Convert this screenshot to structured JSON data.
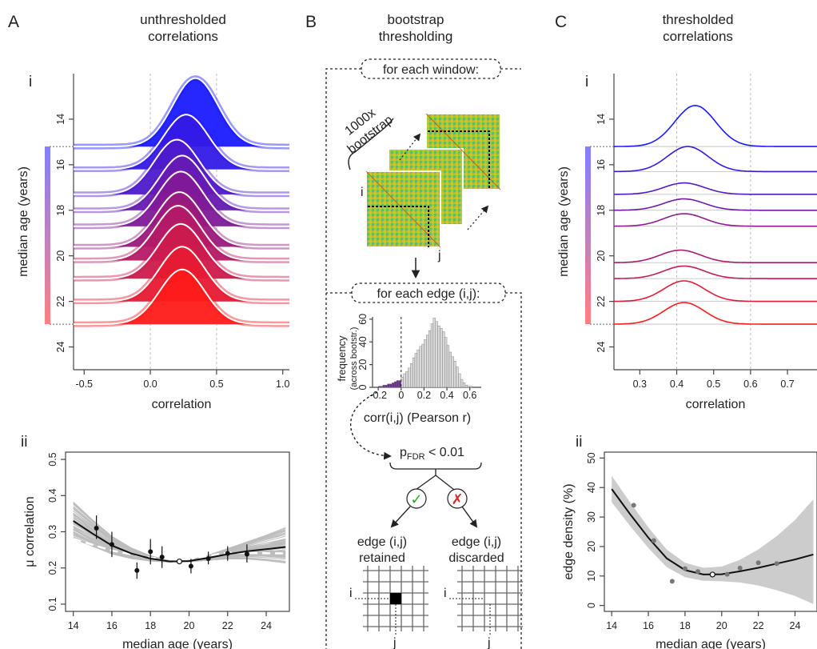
{
  "panels": {
    "A": {
      "letter": "A",
      "title": [
        "unthresholded",
        "correlations"
      ],
      "sub_i": "i",
      "sub_ii": "ii"
    },
    "B": {
      "letter": "B",
      "title": [
        "bootstrap",
        "thresholding"
      ],
      "window_box": "for each window:",
      "bootstrap_text": [
        "1000x",
        "bootstrap"
      ],
      "idx_i": "i",
      "idx_j": "j",
      "edge_box": "for each edge (i,j):",
      "hist_ylabel": [
        "frequency",
        "(across bootstr.)"
      ],
      "hist_xlabel": "corr(i,j) (Pearson r)",
      "pfdr_p": "p",
      "pfdr_sub": "FDR",
      "pfdr_rest": " < 0.01",
      "check_symbol": "✓",
      "cross_symbol": "✗",
      "retained": [
        "edge (i,j)",
        "retained"
      ],
      "discarded": [
        "edge (i,j)",
        "discarded"
      ]
    },
    "C": {
      "letter": "C",
      "title": [
        "thresholded",
        "correlations"
      ],
      "sub_i": "i",
      "sub_ii": "ii"
    }
  },
  "colors": {
    "young": "#1a1aff",
    "old": "#ff1a1a",
    "ribbon": "#cccccc",
    "spaghetti": "#bdbdbd"
  },
  "chart_data": [
    {
      "id": "A-i",
      "type": "area",
      "xlabel": "correlation",
      "ylabel": "median age (years)",
      "xticks": [
        -0.5,
        0.0,
        0.5,
        1.0
      ],
      "xtick_labels": [
        "-0.5",
        "0.0",
        "0.5",
        "1.0"
      ],
      "xlim": [
        -0.58,
        1.05
      ],
      "yticks": [
        14,
        16,
        18,
        20,
        22,
        24
      ],
      "ylim": [
        12,
        25
      ],
      "x_gridlines": [
        0.0,
        0.5
      ],
      "series": [
        {
          "age": 15.2,
          "mean": 0.34,
          "sd": 0.17,
          "height": 3.0
        },
        {
          "age": 16.2,
          "mean": 0.27,
          "sd": 0.17,
          "height": 2.4
        },
        {
          "age": 17.3,
          "mean": 0.2,
          "sd": 0.17,
          "height": 2.4
        },
        {
          "age": 18.0,
          "mean": 0.24,
          "sd": 0.17,
          "height": 2.4
        },
        {
          "age": 18.7,
          "mean": 0.23,
          "sd": 0.17,
          "height": 2.4
        },
        {
          "age": 19.6,
          "mean": 0.22,
          "sd": 0.17,
          "height": 2.4
        },
        {
          "age": 20.2,
          "mean": 0.21,
          "sd": 0.17,
          "height": 2.4
        },
        {
          "age": 21.0,
          "mean": 0.23,
          "sd": 0.17,
          "height": 2.4
        },
        {
          "age": 22.0,
          "mean": 0.24,
          "sd": 0.17,
          "height": 2.4
        },
        {
          "age": 23.0,
          "mean": 0.24,
          "sd": 0.17,
          "height": 2.4
        }
      ]
    },
    {
      "id": "A-ii",
      "type": "scatter",
      "xlabel": "median age (years)",
      "ylabel": "μ correlation",
      "xticks": [
        14,
        16,
        18,
        20,
        22,
        24
      ],
      "xlim": [
        13.6,
        25.2
      ],
      "yticks": [
        0.1,
        0.2,
        0.3,
        0.4,
        0.5
      ],
      "ylim": [
        0.08,
        0.52
      ],
      "points": [
        {
          "x": 15.2,
          "y": 0.31,
          "lo": 0.28,
          "hi": 0.345
        },
        {
          "x": 16.0,
          "y": 0.265,
          "lo": 0.23,
          "hi": 0.3
        },
        {
          "x": 17.3,
          "y": 0.193,
          "lo": 0.17,
          "hi": 0.215
        },
        {
          "x": 18.0,
          "y": 0.245,
          "lo": 0.21,
          "hi": 0.28
        },
        {
          "x": 18.6,
          "y": 0.23,
          "lo": 0.2,
          "hi": 0.26
        },
        {
          "x": 19.5,
          "y": 0.218,
          "open": true
        },
        {
          "x": 20.1,
          "y": 0.205,
          "lo": 0.185,
          "hi": 0.225
        },
        {
          "x": 21.0,
          "y": 0.226,
          "lo": 0.21,
          "hi": 0.245
        },
        {
          "x": 22.0,
          "y": 0.24,
          "lo": 0.22,
          "hi": 0.26
        },
        {
          "x": 23.0,
          "y": 0.238,
          "lo": 0.215,
          "hi": 0.265
        }
      ],
      "fit": [
        [
          14,
          0.33
        ],
        [
          15,
          0.295
        ],
        [
          16,
          0.262
        ],
        [
          17,
          0.24
        ],
        [
          18,
          0.226
        ],
        [
          19,
          0.218
        ],
        [
          20,
          0.219
        ],
        [
          21,
          0.228
        ],
        [
          22,
          0.238
        ],
        [
          23,
          0.246
        ],
        [
          24,
          0.252
        ],
        [
          25,
          0.258
        ]
      ],
      "dashed_fit": [
        [
          14,
          0.28
        ],
        [
          16,
          0.248
        ],
        [
          18,
          0.228
        ],
        [
          20,
          0.225
        ],
        [
          22,
          0.242
        ],
        [
          25,
          0.24
        ]
      ]
    },
    {
      "id": "B-hist",
      "type": "bar",
      "xticks": [
        -0.2,
        0,
        0.2,
        0.4,
        0.6
      ],
      "xtick_labels": [
        "-0.2",
        "0",
        "0.2",
        "0.4",
        "0.6"
      ],
      "xlim": [
        -0.25,
        0.7
      ],
      "yticks": [
        0,
        20,
        40,
        60
      ],
      "ylim": [
        0,
        62
      ],
      "bin_width": 0.02,
      "bins_start": -0.2,
      "counts": [
        1,
        1,
        2,
        2,
        3,
        3,
        4,
        5,
        6,
        6,
        9,
        12,
        14,
        17,
        21,
        26,
        30,
        33,
        36,
        38,
        42,
        46,
        50,
        56,
        61,
        58,
        54,
        52,
        49,
        44,
        37,
        31,
        27,
        23,
        18,
        12,
        7,
        4,
        2,
        1,
        1,
        0,
        0,
        0,
        0
      ],
      "negative_color": "#6a2c8e",
      "positive_color": "#d9d9d9"
    },
    {
      "id": "C-i",
      "type": "area",
      "xlabel": "correlation",
      "ylabel": "median age (years)",
      "xticks": [
        0.3,
        0.4,
        0.5,
        0.6,
        0.7
      ],
      "xlim": [
        0.23,
        0.78
      ],
      "yticks": [
        14,
        16,
        18,
        20,
        22,
        24
      ],
      "ylim": [
        12,
        25
      ],
      "x_gridlines": [
        0.4,
        0.6
      ],
      "series": [
        {
          "age": 15.2,
          "mean": 0.45,
          "sd": 0.055,
          "height": 1.8
        },
        {
          "age": 16.3,
          "mean": 0.43,
          "sd": 0.055,
          "height": 1.1
        },
        {
          "age": 17.3,
          "mean": 0.42,
          "sd": 0.055,
          "height": 0.5
        },
        {
          "age": 18.0,
          "mean": 0.42,
          "sd": 0.055,
          "height": 0.5
        },
        {
          "age": 18.7,
          "mean": 0.42,
          "sd": 0.055,
          "height": 0.55
        },
        {
          "age": 20.3,
          "mean": 0.41,
          "sd": 0.055,
          "height": 0.55
        },
        {
          "age": 21.0,
          "mean": 0.42,
          "sd": 0.055,
          "height": 0.55
        },
        {
          "age": 22.0,
          "mean": 0.42,
          "sd": 0.055,
          "height": 0.9
        },
        {
          "age": 23.0,
          "mean": 0.42,
          "sd": 0.055,
          "height": 0.95
        }
      ]
    },
    {
      "id": "C-ii",
      "type": "scatter",
      "xlabel": "median age (years)",
      "ylabel": "edge density (%)",
      "xticks": [
        14,
        16,
        18,
        20,
        22,
        24
      ],
      "xlim": [
        13.6,
        25.2
      ],
      "yticks": [
        0,
        10,
        20,
        30,
        40,
        50
      ],
      "ylim": [
        -2,
        52
      ],
      "points": [
        {
          "x": 15.2,
          "y": 34
        },
        {
          "x": 16.3,
          "y": 22
        },
        {
          "x": 17.3,
          "y": 8.2
        },
        {
          "x": 18.0,
          "y": 12.5
        },
        {
          "x": 18.7,
          "y": 11.5
        },
        {
          "x": 19.5,
          "y": 10.5,
          "open": true
        },
        {
          "x": 20.3,
          "y": 10.6
        },
        {
          "x": 21.0,
          "y": 12.7
        },
        {
          "x": 22.0,
          "y": 14.5
        },
        {
          "x": 23.0,
          "y": 14.2
        }
      ],
      "fit": [
        [
          14,
          39.5
        ],
        [
          15,
          31
        ],
        [
          16,
          23
        ],
        [
          17,
          16
        ],
        [
          18,
          12
        ],
        [
          19,
          10.5
        ],
        [
          20,
          10.6
        ],
        [
          21,
          11.6
        ],
        [
          22,
          12.8
        ],
        [
          23,
          14.2
        ],
        [
          24,
          15.6
        ],
        [
          25,
          17.3
        ]
      ],
      "band_upper": [
        [
          14,
          44
        ],
        [
          15,
          35
        ],
        [
          16,
          26.5
        ],
        [
          17,
          19
        ],
        [
          18,
          14.5
        ],
        [
          19,
          12.8
        ],
        [
          20,
          13.2
        ],
        [
          21,
          15.5
        ],
        [
          22,
          19
        ],
        [
          23,
          23.5
        ],
        [
          24,
          29
        ],
        [
          25,
          36
        ]
      ],
      "band_lower": [
        [
          14,
          35
        ],
        [
          15,
          27
        ],
        [
          16,
          19.5
        ],
        [
          17,
          13
        ],
        [
          18,
          9.6
        ],
        [
          19,
          8.4
        ],
        [
          20,
          8.2
        ],
        [
          21,
          7.8
        ],
        [
          22,
          6.8
        ],
        [
          23,
          5.2
        ],
        [
          24,
          3.2
        ],
        [
          25,
          0.5
        ]
      ]
    }
  ]
}
